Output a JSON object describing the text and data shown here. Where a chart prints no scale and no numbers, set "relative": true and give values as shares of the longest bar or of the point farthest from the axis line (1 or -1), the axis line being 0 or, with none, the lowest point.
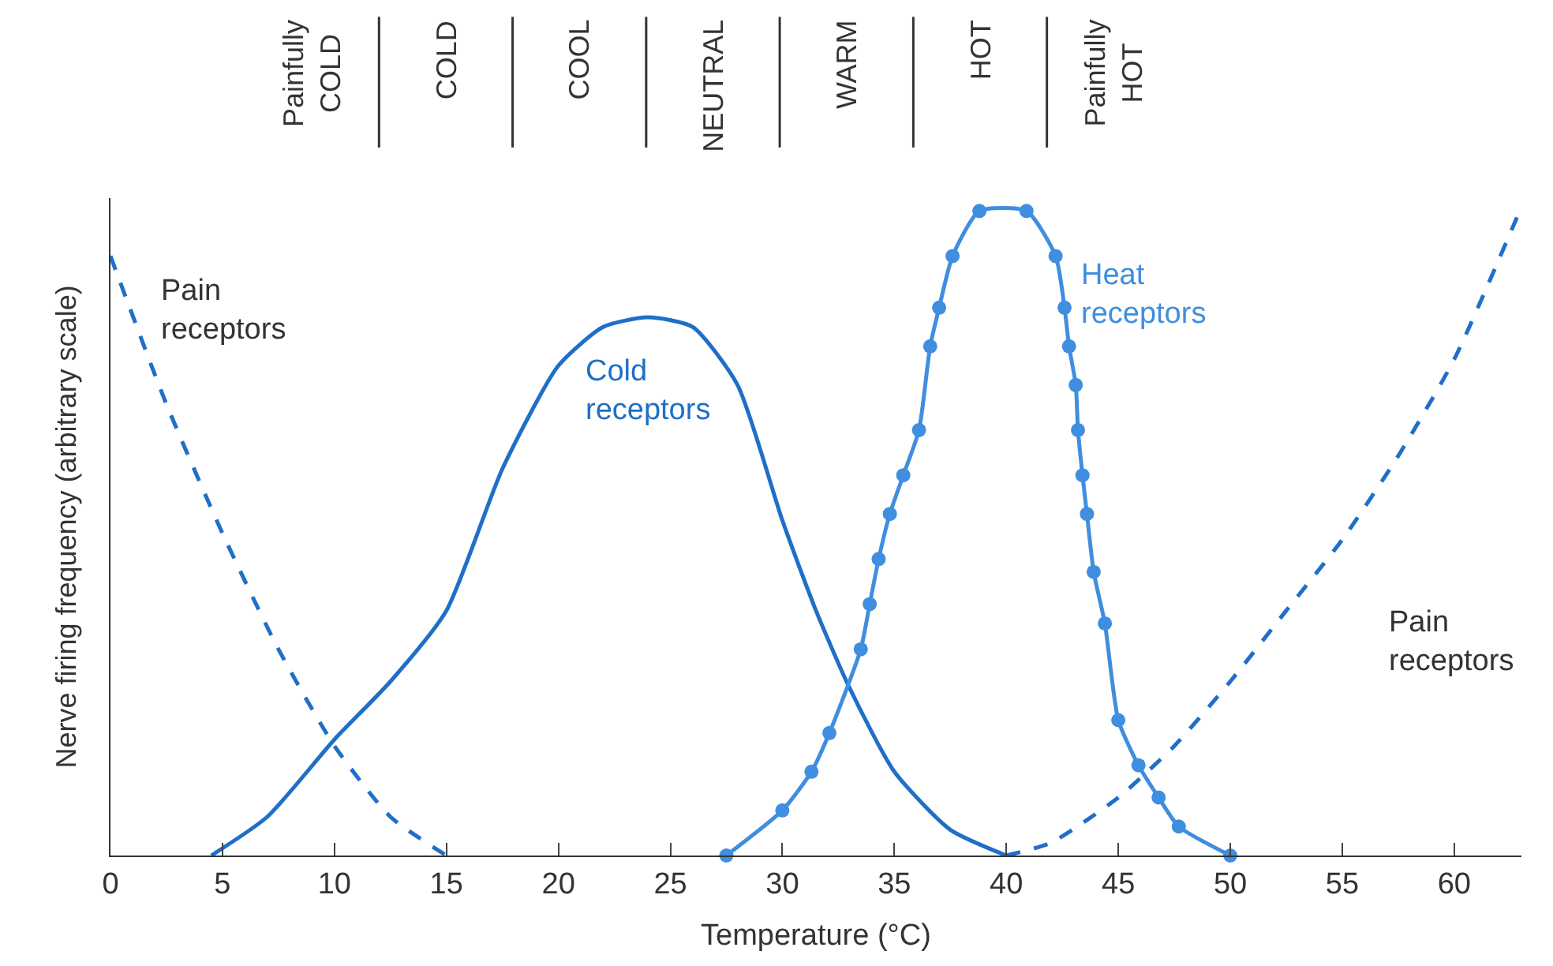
{
  "chart_data": {
    "type": "line",
    "relative": true,
    "xlabel": "Temperature (°C)",
    "ylabel": "Nerve firing frequency (arbitrary scale)",
    "xlim": [
      0,
      63
    ],
    "xticks": [
      0,
      5,
      10,
      15,
      20,
      25,
      30,
      35,
      40,
      45,
      50,
      55,
      60
    ],
    "legend": false,
    "series": [
      {
        "name": "Pain receptors",
        "color": "#1f6fc8",
        "line_style": "dashed",
        "marker": "none",
        "x": [
          0,
          2.5,
          5,
          7.5,
          10,
          12.5,
          15
        ],
        "values": [
          0.93,
          0.7,
          0.5,
          0.32,
          0.17,
          0.06,
          0
        ]
      },
      {
        "name": "Cold receptors",
        "color": "#1f6fc8",
        "line_style": "solid",
        "marker": "none",
        "x": [
          4.5,
          7,
          10,
          12.5,
          15,
          17.5,
          20,
          22,
          24,
          26,
          28,
          30,
          31.5,
          33,
          35,
          37.5,
          40
        ],
        "values": [
          0,
          0.06,
          0.18,
          0.27,
          0.38,
          0.6,
          0.76,
          0.82,
          0.835,
          0.82,
          0.73,
          0.52,
          0.38,
          0.26,
          0.13,
          0.04,
          0
        ]
      },
      {
        "name": "Heat receptors",
        "color": "#3f8ee0",
        "line_style": "solid",
        "marker": "circle",
        "x": [
          27.5,
          30,
          31.3,
          32.1,
          33.5,
          33.9,
          34.3,
          34.8,
          35.4,
          36.1,
          36.6,
          37,
          37.6,
          38.8,
          40.9,
          42.2,
          42.6,
          42.8,
          43.1,
          43.2,
          43.4,
          43.6,
          43.9,
          44.4,
          45,
          45.9,
          46.8,
          47.7,
          50
        ],
        "values": [
          0,
          0.07,
          0.13,
          0.19,
          0.32,
          0.39,
          0.46,
          0.53,
          0.59,
          0.66,
          0.79,
          0.85,
          0.93,
          1,
          1,
          0.93,
          0.85,
          0.79,
          0.73,
          0.66,
          0.59,
          0.53,
          0.44,
          0.36,
          0.21,
          0.14,
          0.09,
          0.045,
          0
        ]
      },
      {
        "name": "Pain receptors",
        "color": "#1f6fc8",
        "line_style": "dashed",
        "marker": "none",
        "x": [
          40,
          42,
          45,
          47.5,
          50,
          52.5,
          55,
          57.5,
          60,
          62.8
        ],
        "values": [
          0,
          0.02,
          0.09,
          0.17,
          0.27,
          0.38,
          0.49,
          0.62,
          0.77,
          0.99
        ]
      }
    ],
    "annotations": [
      "Painfully\nCOLD",
      "COLD",
      "COOL",
      "NEUTRAL",
      "WARM",
      "HOT",
      "Painfully\nHOT"
    ]
  }
}
